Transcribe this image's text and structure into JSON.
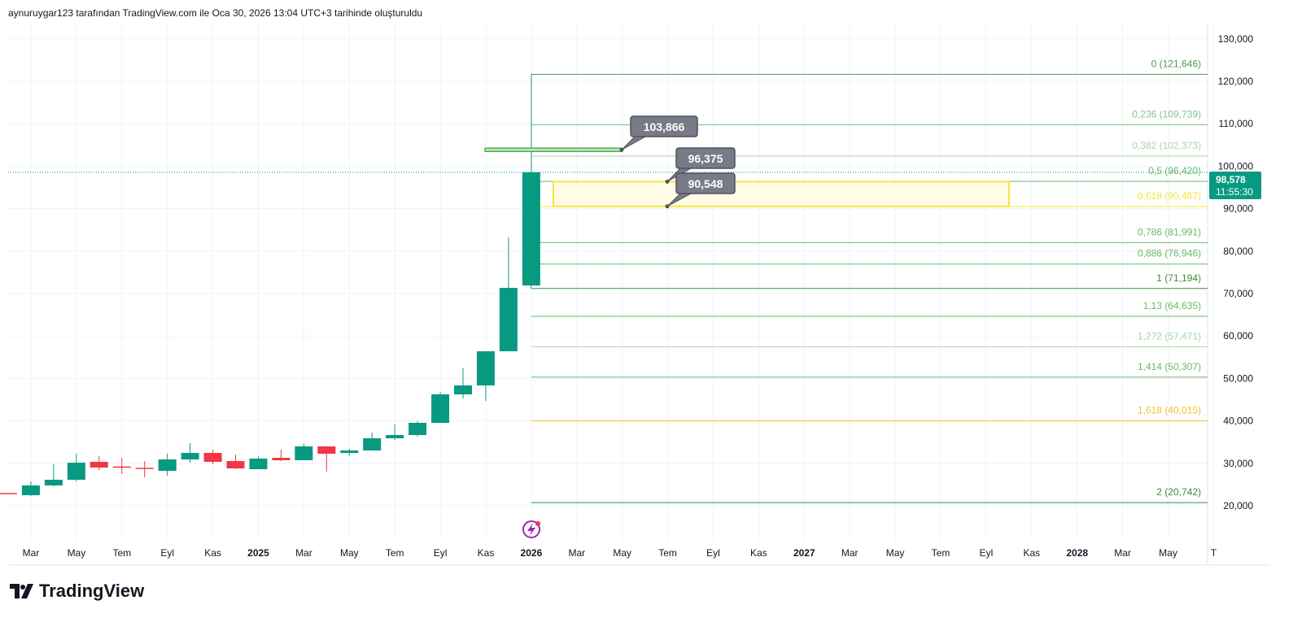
{
  "header": {
    "caption": "aynuruygar123 tarafından TradingView.com ile Oca 30, 2026 13:04 UTC+3 tarihinde oluşturuldu"
  },
  "logo": {
    "text": "TradingView"
  },
  "colors": {
    "up": "#089981",
    "down": "#f23645",
    "grid": "#f0f3fa",
    "yellow": "#f5e642",
    "callout": "#787b86"
  },
  "chart_data": {
    "type": "candlestick",
    "ylim": [
      14000,
      134000
    ],
    "y_ticks": [
      20000,
      30000,
      40000,
      50000,
      60000,
      70000,
      80000,
      90000,
      100000,
      110000,
      120000,
      130000
    ],
    "y_tick_labels": [
      "20,000",
      "30,000",
      "40,000",
      "50,000",
      "60,000",
      "70,000",
      "80,000",
      "90,000",
      "100,000",
      "110,000",
      "120,000",
      "130,000"
    ],
    "x_labels": [
      "Mar",
      "May",
      "Tem",
      "Eyl",
      "Kas",
      "2025",
      "Mar",
      "May",
      "Tem",
      "Eyl",
      "Kas",
      "2026",
      "Mar",
      "May",
      "Tem",
      "Eyl",
      "Kas",
      "2027",
      "Mar",
      "May",
      "Tem",
      "Eyl",
      "Kas",
      "2028",
      "Mar",
      "May",
      "T"
    ],
    "x_bold": [
      "2025",
      "2026",
      "2027",
      "2028"
    ],
    "candles": [
      {
        "o": 23000,
        "h": 23100,
        "l": 22700,
        "c": 22800
      },
      {
        "o": 22490,
        "h": 25750,
        "l": 22300,
        "c": 24790
      },
      {
        "o": 24790,
        "h": 29770,
        "l": 24600,
        "c": 26130
      },
      {
        "o": 26130,
        "h": 32260,
        "l": 25750,
        "c": 30150
      },
      {
        "o": 30350,
        "h": 31690,
        "l": 28430,
        "c": 29000
      },
      {
        "o": 29250,
        "h": 31300,
        "l": 27470,
        "c": 29100
      },
      {
        "o": 28950,
        "h": 30540,
        "l": 26700,
        "c": 28700
      },
      {
        "o": 28240,
        "h": 32260,
        "l": 27090,
        "c": 30920
      },
      {
        "o": 30920,
        "h": 34750,
        "l": 30150,
        "c": 32450
      },
      {
        "o": 32450,
        "h": 33220,
        "l": 29770,
        "c": 30350
      },
      {
        "o": 30540,
        "h": 32070,
        "l": 28620,
        "c": 28810
      },
      {
        "o": 28620,
        "h": 31690,
        "l": 28620,
        "c": 31110
      },
      {
        "o": 31300,
        "h": 33220,
        "l": 30540,
        "c": 30730
      },
      {
        "o": 30730,
        "h": 34560,
        "l": 30730,
        "c": 33990
      },
      {
        "o": 33990,
        "h": 34000,
        "l": 28050,
        "c": 32260
      },
      {
        "o": 32450,
        "h": 33410,
        "l": 31690,
        "c": 33030
      },
      {
        "o": 33030,
        "h": 37240,
        "l": 33030,
        "c": 35900
      },
      {
        "o": 35900,
        "h": 39160,
        "l": 35520,
        "c": 36670
      },
      {
        "o": 36670,
        "h": 39920,
        "l": 36280,
        "c": 39540
      },
      {
        "o": 39540,
        "h": 46820,
        "l": 39540,
        "c": 46250
      },
      {
        "o": 46250,
        "h": 52400,
        "l": 45290,
        "c": 48350
      },
      {
        "o": 48350,
        "h": 56400,
        "l": 44710,
        "c": 56400
      },
      {
        "o": 56400,
        "h": 83220,
        "l": 56400,
        "c": 71340
      },
      {
        "o": 71900,
        "h": 98578,
        "l": 71194,
        "c": 98578
      }
    ],
    "last_price": {
      "value": 98578,
      "label": "98,578",
      "countdown": "11:55:30"
    },
    "fib": {
      "from": 71194,
      "to": 121646,
      "levels": [
        {
          "label": "0 (121,646)",
          "price": 121646,
          "color": "#4c9a52"
        },
        {
          "label": "0,236 (109,739)",
          "price": 109739,
          "color": "#81c784"
        },
        {
          "label": "0,382 (102,373)",
          "price": 102373,
          "color": "#a5d6a7"
        },
        {
          "label": "0,5 (96,420)",
          "price": 96420,
          "color": "#66bb6a"
        },
        {
          "label": "0,618 (90,467)",
          "price": 90467,
          "color": "#f5e642"
        },
        {
          "label": "0,786 (81,991)",
          "price": 81991,
          "color": "#66bb6a"
        },
        {
          "label": "0,886 (76,946)",
          "price": 76946,
          "color": "#66bb6a"
        },
        {
          "label": "1 (71,194)",
          "price": 71194,
          "color": "#388e3c"
        },
        {
          "label": "1,13 (64,635)",
          "price": 64635,
          "color": "#66bb6a"
        },
        {
          "label": "1,272 (57,471)",
          "price": 57471,
          "color": "#a5d6a7"
        },
        {
          "label": "1,414 (50,307)",
          "price": 50307,
          "color": "#66bb6a"
        },
        {
          "label": "1,618 (40,015)",
          "price": 40015,
          "color": "#f2c12e"
        },
        {
          "label": "2 (20,742)",
          "price": 20742,
          "color": "#388e3c"
        }
      ]
    },
    "zone": {
      "top": 96375,
      "bottom": 90548
    },
    "callouts": [
      {
        "label": "103,866",
        "price": 103866
      },
      {
        "label": "96,375",
        "price": 96375
      },
      {
        "label": "90,548",
        "price": 90548
      }
    ],
    "marker_line": {
      "price": 103866
    }
  }
}
